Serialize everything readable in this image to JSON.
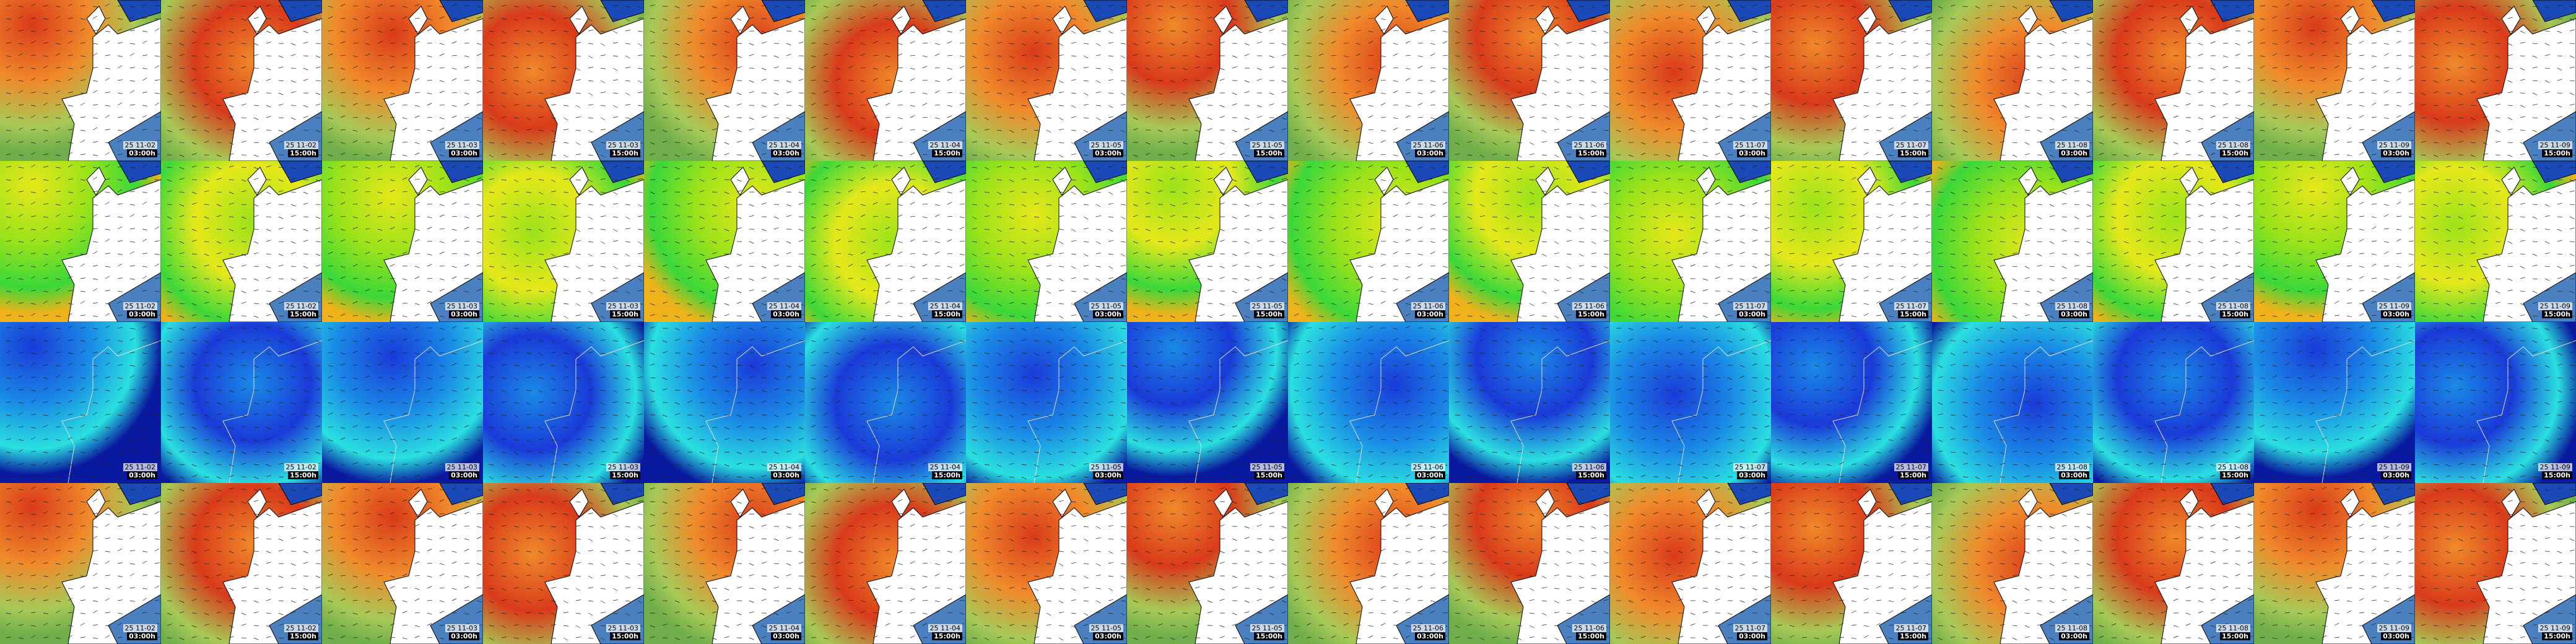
{
  "rows": [
    {
      "panels": [
        {
          "date": "25 11-02",
          "time": "03:00h"
        },
        {
          "date": "25 11-02",
          "time": "15:00h"
        },
        {
          "date": "25 11-03",
          "time": "03:00h"
        },
        {
          "date": "25 11-03",
          "time": "15:00h"
        },
        {
          "date": "25 11-04",
          "time": "03:00h"
        },
        {
          "date": "25 11-04",
          "time": "15:00h"
        },
        {
          "date": "25 11-05",
          "time": "03:00h"
        },
        {
          "date": "25 11-05",
          "time": "15:00h"
        },
        {
          "date": "25 11-06",
          "time": "03:00h"
        },
        {
          "date": "25 11-06",
          "time": "15:00h"
        },
        {
          "date": "25 11-07",
          "time": "03:00h"
        },
        {
          "date": "25 11-07",
          "time": "15:00h"
        },
        {
          "date": "25 11-08",
          "time": "03:00h"
        },
        {
          "date": "25 11-08",
          "time": "15:00h"
        },
        {
          "date": "25 11-09",
          "time": "03:00h"
        },
        {
          "date": "25 11-09",
          "time": "15:00h"
        }
      ]
    },
    {
      "panels": [
        {
          "date": "25 11-02",
          "time": "03:00h"
        },
        {
          "date": "25 11-02",
          "time": "15:00h"
        },
        {
          "date": "25 11-03",
          "time": "03:00h"
        },
        {
          "date": "25 11-03",
          "time": "15:00h"
        },
        {
          "date": "25 11-04",
          "time": "03:00h"
        },
        {
          "date": "25 11-04",
          "time": "15:00h"
        },
        {
          "date": "25 11-05",
          "time": "03:00h"
        },
        {
          "date": "25 11-05",
          "time": "15:00h"
        },
        {
          "date": "25 11-06",
          "time": "03:00h"
        },
        {
          "date": "25 11-06",
          "time": "15:00h"
        },
        {
          "date": "25 11-07",
          "time": "03:00h"
        },
        {
          "date": "25 11-07",
          "time": "15:00h"
        },
        {
          "date": "25 11-08",
          "time": "03:00h"
        },
        {
          "date": "25 11-08",
          "time": "15:00h"
        },
        {
          "date": "25 11-09",
          "time": "03:00h"
        },
        {
          "date": "25 11-09",
          "time": "15:00h"
        }
      ]
    },
    {
      "panels": [
        {
          "date": "25 11-02",
          "time": "03:00h"
        },
        {
          "date": "25 11-02",
          "time": "15:00h"
        },
        {
          "date": "25 11-03",
          "time": "03:00h"
        },
        {
          "date": "25 11-03",
          "time": "15:00h"
        },
        {
          "date": "25 11-04",
          "time": "03:00h"
        },
        {
          "date": "25 11-04",
          "time": "15:00h"
        },
        {
          "date": "25 11-05",
          "time": "03:00h"
        },
        {
          "date": "25 11-05",
          "time": "15:00h"
        },
        {
          "date": "25 11-06",
          "time": "03:00h"
        },
        {
          "date": "25 11-06",
          "time": "15:00h"
        },
        {
          "date": "25 11-07",
          "time": "03:00h"
        },
        {
          "date": "25 11-07",
          "time": "15:00h"
        },
        {
          "date": "25 11-08",
          "time": "03:00h"
        },
        {
          "date": "25 11-08",
          "time": "15:00h"
        },
        {
          "date": "25 11-09",
          "time": "03:00h"
        },
        {
          "date": "25 11-09",
          "time": "15:00h"
        }
      ]
    },
    {
      "panels": [
        {
          "date": "25 11-02",
          "time": "03:00h"
        },
        {
          "date": "25 11-02",
          "time": "15:00h"
        },
        {
          "date": "25 11-03",
          "time": "03:00h"
        },
        {
          "date": "25 11-03",
          "time": "15:00h"
        },
        {
          "date": "25 11-04",
          "time": "03:00h"
        },
        {
          "date": "25 11-04",
          "time": "15:00h"
        },
        {
          "date": "25 11-05",
          "time": "03:00h"
        },
        {
          "date": "25 11-05",
          "time": "15:00h"
        },
        {
          "date": "25 11-06",
          "time": "03:00h"
        },
        {
          "date": "25 11-06",
          "time": "15:00h"
        },
        {
          "date": "25 11-07",
          "time": "03:00h"
        },
        {
          "date": "25 11-07",
          "time": "15:00h"
        },
        {
          "date": "25 11-08",
          "time": "03:00h"
        },
        {
          "date": "25 11-08",
          "time": "15:00h"
        },
        {
          "date": "25 11-09",
          "time": "03:00h"
        },
        {
          "date": "25 11-09",
          "time": "15:00h"
        }
      ]
    }
  ]
}
